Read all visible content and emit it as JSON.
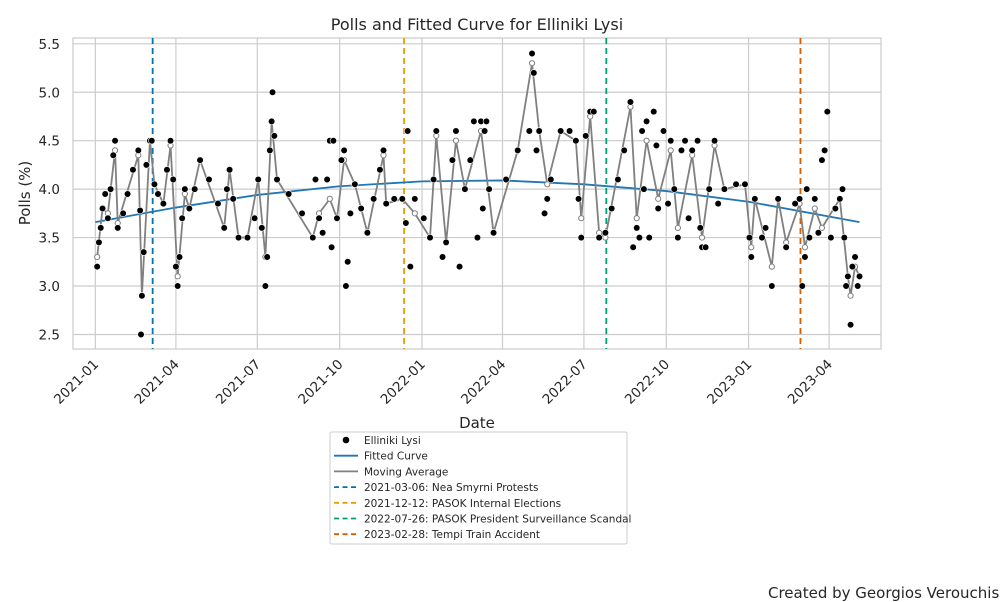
{
  "chart_data": {
    "type": "scatter",
    "title": "Polls and Fitted Curve for Elliniki Lysi",
    "xlabel": "Date",
    "ylabel": "Polls (%)",
    "xlim": [
      "2020-12-07",
      "2023-05-29"
    ],
    "ylim": [
      2.35,
      5.56
    ],
    "x_ticks": [
      "2021-01",
      "2021-04",
      "2021-07",
      "2021-10",
      "2022-01",
      "2022-04",
      "2022-07",
      "2022-10",
      "2023-01",
      "2023-04"
    ],
    "y_ticks": [
      2.5,
      3.0,
      3.5,
      4.0,
      4.5,
      5.0,
      5.5
    ],
    "y_tick_labels": [
      "2.5",
      "3.0",
      "3.5",
      "4.0",
      "4.5",
      "5.0",
      "5.5"
    ],
    "grid": true,
    "legend_position": "below plot",
    "series": [
      {
        "name": "Elliniki Lysi",
        "kind": "scatter",
        "color": "#000000",
        "points": [
          [
            "2021-01-03",
            3.2
          ],
          [
            "2021-01-05",
            3.45
          ],
          [
            "2021-01-07",
            3.6
          ],
          [
            "2021-01-09",
            3.8
          ],
          [
            "2021-01-12",
            3.95
          ],
          [
            "2021-01-15",
            3.7
          ],
          [
            "2021-01-18",
            4.0
          ],
          [
            "2021-01-21",
            4.35
          ],
          [
            "2021-01-23",
            4.5
          ],
          [
            "2021-01-26",
            3.6
          ],
          [
            "2021-02-01",
            3.75
          ],
          [
            "2021-02-06",
            3.95
          ],
          [
            "2021-02-12",
            4.2
          ],
          [
            "2021-02-18",
            4.4
          ],
          [
            "2021-02-20",
            3.78
          ],
          [
            "2021-02-21",
            2.5
          ],
          [
            "2021-02-22",
            2.9
          ],
          [
            "2021-02-24",
            3.35
          ],
          [
            "2021-02-27",
            4.25
          ],
          [
            "2021-03-03",
            4.5
          ],
          [
            "2021-03-05",
            4.5
          ],
          [
            "2021-03-08",
            4.05
          ],
          [
            "2021-03-12",
            3.95
          ],
          [
            "2021-03-18",
            3.85
          ],
          [
            "2021-03-22",
            4.2
          ],
          [
            "2021-03-26",
            4.5
          ],
          [
            "2021-03-29",
            4.1
          ],
          [
            "2021-04-01",
            3.2
          ],
          [
            "2021-04-03",
            3.0
          ],
          [
            "2021-04-05",
            3.3
          ],
          [
            "2021-04-08",
            3.7
          ],
          [
            "2021-04-11",
            4.0
          ],
          [
            "2021-04-16",
            3.8
          ],
          [
            "2021-04-22",
            4.0
          ],
          [
            "2021-04-28",
            4.3
          ],
          [
            "2021-05-08",
            4.1
          ],
          [
            "2021-05-18",
            3.85
          ],
          [
            "2021-05-25",
            3.6
          ],
          [
            "2021-05-28",
            4.0
          ],
          [
            "2021-05-31",
            4.2
          ],
          [
            "2021-06-04",
            3.9
          ],
          [
            "2021-06-10",
            3.5
          ],
          [
            "2021-06-20",
            3.5
          ],
          [
            "2021-06-28",
            3.7
          ],
          [
            "2021-07-02",
            4.1
          ],
          [
            "2021-07-06",
            3.6
          ],
          [
            "2021-07-10",
            3.0
          ],
          [
            "2021-07-12",
            3.3
          ],
          [
            "2021-07-15",
            4.4
          ],
          [
            "2021-07-17",
            4.7
          ],
          [
            "2021-07-18",
            5.0
          ],
          [
            "2021-07-20",
            4.55
          ],
          [
            "2021-07-23",
            4.1
          ],
          [
            "2021-08-05",
            3.95
          ],
          [
            "2021-08-20",
            3.75
          ],
          [
            "2021-09-01",
            3.5
          ],
          [
            "2021-09-04",
            4.1
          ],
          [
            "2021-09-08",
            3.7
          ],
          [
            "2021-09-12",
            3.55
          ],
          [
            "2021-09-17",
            4.1
          ],
          [
            "2021-09-20",
            4.5
          ],
          [
            "2021-09-22",
            3.4
          ],
          [
            "2021-09-24",
            4.5
          ],
          [
            "2021-09-28",
            3.7
          ],
          [
            "2021-10-03",
            4.3
          ],
          [
            "2021-10-06",
            4.4
          ],
          [
            "2021-10-08",
            3.0
          ],
          [
            "2021-10-10",
            3.25
          ],
          [
            "2021-10-13",
            3.75
          ],
          [
            "2021-10-18",
            4.05
          ],
          [
            "2021-10-25",
            3.8
          ],
          [
            "2021-11-01",
            3.55
          ],
          [
            "2021-11-08",
            3.9
          ],
          [
            "2021-11-15",
            4.2
          ],
          [
            "2021-11-19",
            4.4
          ],
          [
            "2021-11-22",
            3.85
          ],
          [
            "2021-12-01",
            3.9
          ],
          [
            "2021-12-10",
            3.9
          ],
          [
            "2021-12-14",
            3.65
          ],
          [
            "2021-12-16",
            4.6
          ],
          [
            "2021-12-19",
            3.2
          ],
          [
            "2021-12-24",
            3.9
          ],
          [
            "2022-01-03",
            3.7
          ],
          [
            "2022-01-10",
            3.5
          ],
          [
            "2022-01-14",
            4.1
          ],
          [
            "2022-01-17",
            4.6
          ],
          [
            "2022-01-24",
            3.3
          ],
          [
            "2022-01-28",
            3.45
          ],
          [
            "2022-02-04",
            4.3
          ],
          [
            "2022-02-08",
            4.6
          ],
          [
            "2022-02-12",
            3.2
          ],
          [
            "2022-02-18",
            4.0
          ],
          [
            "2022-02-24",
            4.3
          ],
          [
            "2022-02-28",
            4.7
          ],
          [
            "2022-03-04",
            3.5
          ],
          [
            "2022-03-08",
            4.7
          ],
          [
            "2022-03-10",
            3.8
          ],
          [
            "2022-03-12",
            4.6
          ],
          [
            "2022-03-14",
            4.7
          ],
          [
            "2022-03-17",
            4.0
          ],
          [
            "2022-03-22",
            3.55
          ],
          [
            "2022-04-05",
            4.1
          ],
          [
            "2022-04-18",
            4.4
          ],
          [
            "2022-05-01",
            4.6
          ],
          [
            "2022-05-04",
            5.4
          ],
          [
            "2022-05-06",
            5.2
          ],
          [
            "2022-05-09",
            4.4
          ],
          [
            "2022-05-12",
            4.6
          ],
          [
            "2022-05-18",
            3.75
          ],
          [
            "2022-05-21",
            3.9
          ],
          [
            "2022-05-25",
            4.1
          ],
          [
            "2022-06-05",
            4.6
          ],
          [
            "2022-06-15",
            4.6
          ],
          [
            "2022-06-22",
            4.5
          ],
          [
            "2022-06-25",
            3.9
          ],
          [
            "2022-06-28",
            3.5
          ],
          [
            "2022-07-03",
            4.55
          ],
          [
            "2022-07-08",
            4.8
          ],
          [
            "2022-07-12",
            4.8
          ],
          [
            "2022-07-18",
            3.5
          ],
          [
            "2022-07-25",
            3.55
          ],
          [
            "2022-08-01",
            3.8
          ],
          [
            "2022-08-08",
            4.1
          ],
          [
            "2022-08-15",
            4.4
          ],
          [
            "2022-08-22",
            4.9
          ],
          [
            "2022-08-25",
            3.4
          ],
          [
            "2022-08-29",
            3.6
          ],
          [
            "2022-09-01",
            3.5
          ],
          [
            "2022-09-04",
            4.6
          ],
          [
            "2022-09-06",
            4.0
          ],
          [
            "2022-09-09",
            4.7
          ],
          [
            "2022-09-12",
            3.5
          ],
          [
            "2022-09-17",
            4.8
          ],
          [
            "2022-09-20",
            4.45
          ],
          [
            "2022-09-22",
            3.8
          ],
          [
            "2022-09-28",
            4.6
          ],
          [
            "2022-10-03",
            3.85
          ],
          [
            "2022-10-06",
            4.5
          ],
          [
            "2022-10-10",
            4.0
          ],
          [
            "2022-10-14",
            3.5
          ],
          [
            "2022-10-18",
            4.4
          ],
          [
            "2022-10-22",
            4.5
          ],
          [
            "2022-10-26",
            3.7
          ],
          [
            "2022-10-30",
            4.4
          ],
          [
            "2022-11-05",
            4.5
          ],
          [
            "2022-11-08",
            3.6
          ],
          [
            "2022-11-10",
            3.4
          ],
          [
            "2022-11-14",
            3.4
          ],
          [
            "2022-11-18",
            4.0
          ],
          [
            "2022-11-24",
            4.5
          ],
          [
            "2022-11-28",
            3.85
          ],
          [
            "2022-12-05",
            4.0
          ],
          [
            "2022-12-18",
            4.05
          ],
          [
            "2022-12-28",
            4.05
          ],
          [
            "2023-01-02",
            3.5
          ],
          [
            "2023-01-04",
            3.3
          ],
          [
            "2023-01-08",
            3.9
          ],
          [
            "2023-01-16",
            3.5
          ],
          [
            "2023-01-20",
            3.6
          ],
          [
            "2023-01-27",
            3.0
          ],
          [
            "2023-02-03",
            3.9
          ],
          [
            "2023-02-12",
            3.4
          ],
          [
            "2023-02-22",
            3.85
          ],
          [
            "2023-02-27",
            3.9
          ],
          [
            "2023-03-02",
            3.0
          ],
          [
            "2023-03-05",
            3.3
          ],
          [
            "2023-03-07",
            4.0
          ],
          [
            "2023-03-10",
            3.5
          ],
          [
            "2023-03-16",
            3.9
          ],
          [
            "2023-03-20",
            3.55
          ],
          [
            "2023-03-24",
            4.3
          ],
          [
            "2023-03-27",
            4.4
          ],
          [
            "2023-03-30",
            4.8
          ],
          [
            "2023-04-03",
            3.5
          ],
          [
            "2023-04-08",
            3.8
          ],
          [
            "2023-04-13",
            3.9
          ],
          [
            "2023-04-16",
            4.0
          ],
          [
            "2023-04-18",
            3.5
          ],
          [
            "2023-04-20",
            3.0
          ],
          [
            "2023-04-22",
            3.1
          ],
          [
            "2023-04-25",
            2.6
          ],
          [
            "2023-04-27",
            3.2
          ],
          [
            "2023-04-30",
            3.3
          ],
          [
            "2023-05-03",
            3.0
          ],
          [
            "2023-05-05",
            3.1
          ]
        ]
      },
      {
        "name": "Fitted Curve",
        "kind": "line",
        "color": "#1f77b4",
        "points": [
          [
            "2021-01-01",
            3.66
          ],
          [
            "2021-04-01",
            3.81
          ],
          [
            "2021-07-01",
            3.94
          ],
          [
            "2021-10-01",
            4.03
          ],
          [
            "2022-01-01",
            4.08
          ],
          [
            "2022-04-01",
            4.09
          ],
          [
            "2022-07-01",
            4.05
          ],
          [
            "2022-10-01",
            3.98
          ],
          [
            "2023-01-01",
            3.87
          ],
          [
            "2023-05-05",
            3.66
          ]
        ]
      },
      {
        "name": "Moving Average",
        "kind": "line",
        "color": "#808080",
        "points": [
          [
            "2021-01-03",
            3.3
          ],
          [
            "2021-01-09",
            3.8
          ],
          [
            "2021-01-15",
            3.75
          ],
          [
            "2021-01-23",
            4.4
          ],
          [
            "2021-01-26",
            3.65
          ],
          [
            "2021-02-18",
            4.35
          ],
          [
            "2021-02-22",
            2.9
          ],
          [
            "2021-03-03",
            4.5
          ],
          [
            "2021-03-08",
            4.05
          ],
          [
            "2021-03-18",
            3.85
          ],
          [
            "2021-03-26",
            4.45
          ],
          [
            "2021-04-03",
            3.1
          ],
          [
            "2021-04-11",
            3.95
          ],
          [
            "2021-04-16",
            3.8
          ],
          [
            "2021-04-28",
            4.3
          ],
          [
            "2021-05-25",
            3.6
          ],
          [
            "2021-05-31",
            4.2
          ],
          [
            "2021-06-10",
            3.5
          ],
          [
            "2021-06-20",
            3.5
          ],
          [
            "2021-07-02",
            4.1
          ],
          [
            "2021-07-10",
            3.3
          ],
          [
            "2021-07-17",
            4.7
          ],
          [
            "2021-07-23",
            4.1
          ],
          [
            "2021-09-01",
            3.5
          ],
          [
            "2021-09-08",
            3.75
          ],
          [
            "2021-09-20",
            3.9
          ],
          [
            "2021-09-28",
            3.7
          ],
          [
            "2021-10-06",
            4.3
          ],
          [
            "2021-10-18",
            4.05
          ],
          [
            "2021-11-01",
            3.55
          ],
          [
            "2021-11-19",
            4.35
          ],
          [
            "2021-11-22",
            3.85
          ],
          [
            "2021-12-10",
            3.9
          ],
          [
            "2021-12-24",
            3.75
          ],
          [
            "2022-01-10",
            3.5
          ],
          [
            "2022-01-17",
            4.55
          ],
          [
            "2022-01-28",
            3.45
          ],
          [
            "2022-02-08",
            4.5
          ],
          [
            "2022-02-18",
            4.0
          ],
          [
            "2022-03-08",
            4.6
          ],
          [
            "2022-03-22",
            3.55
          ],
          [
            "2022-04-18",
            4.4
          ],
          [
            "2022-05-04",
            5.3
          ],
          [
            "2022-05-12",
            4.6
          ],
          [
            "2022-05-21",
            4.05
          ],
          [
            "2022-06-05",
            4.6
          ],
          [
            "2022-06-22",
            4.5
          ],
          [
            "2022-06-28",
            3.7
          ],
          [
            "2022-07-08",
            4.75
          ],
          [
            "2022-07-18",
            3.55
          ],
          [
            "2022-07-25",
            3.5
          ],
          [
            "2022-08-22",
            4.85
          ],
          [
            "2022-08-29",
            3.7
          ],
          [
            "2022-09-09",
            4.5
          ],
          [
            "2022-09-22",
            3.9
          ],
          [
            "2022-10-06",
            4.4
          ],
          [
            "2022-10-14",
            3.6
          ],
          [
            "2022-10-30",
            4.35
          ],
          [
            "2022-11-10",
            3.5
          ],
          [
            "2022-11-24",
            4.45
          ],
          [
            "2022-12-05",
            4.0
          ],
          [
            "2022-12-28",
            4.05
          ],
          [
            "2023-01-04",
            3.4
          ],
          [
            "2023-01-08",
            3.9
          ],
          [
            "2023-01-27",
            3.2
          ],
          [
            "2023-02-03",
            3.9
          ],
          [
            "2023-02-12",
            3.45
          ],
          [
            "2023-02-27",
            3.85
          ],
          [
            "2023-03-05",
            3.4
          ],
          [
            "2023-03-16",
            3.8
          ],
          [
            "2023-03-24",
            3.6
          ],
          [
            "2023-04-13",
            3.9
          ],
          [
            "2023-04-22",
            3.1
          ],
          [
            "2023-04-25",
            2.9
          ],
          [
            "2023-04-30",
            3.2
          ],
          [
            "2023-05-05",
            3.1
          ]
        ]
      }
    ],
    "events": [
      {
        "date": "2021-03-06",
        "label": "2021-03-06: Nea Smyrni Protests",
        "color": "#0072b2"
      },
      {
        "date": "2021-12-12",
        "label": "2021-12-12: PASOK Internal Elections",
        "color": "#e69f00"
      },
      {
        "date": "2022-07-26",
        "label": "2022-07-26: PASOK President Surveillance Scandal",
        "color": "#009e73"
      },
      {
        "date": "2023-02-28",
        "label": "2023-02-28: Tempi Train Accident",
        "color": "#d55e00"
      }
    ]
  },
  "credit": "Created by Georgios Verouchis"
}
